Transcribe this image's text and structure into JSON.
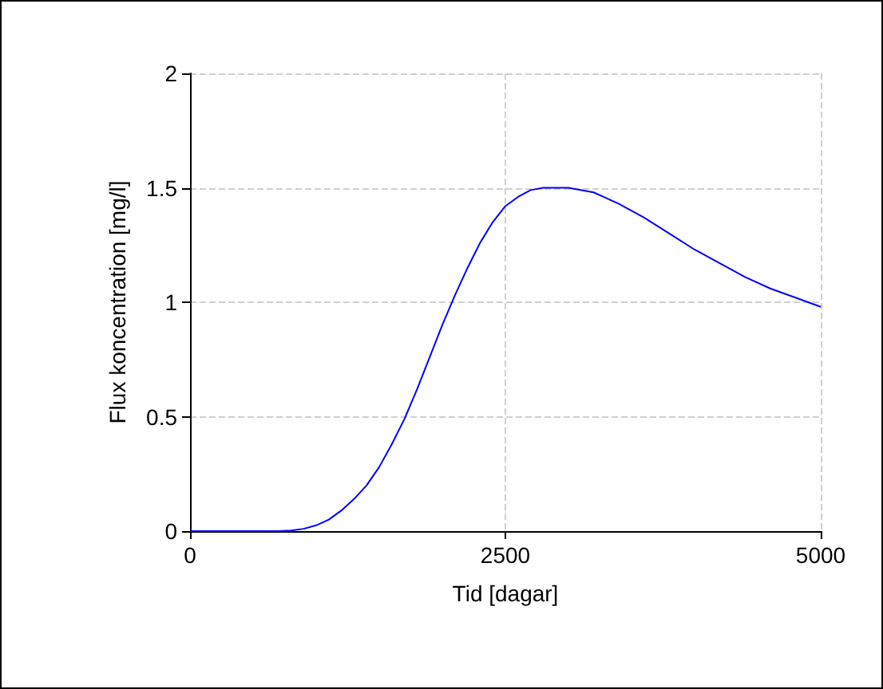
{
  "chart_data": {
    "type": "line",
    "xlabel": "Tid [dagar]",
    "ylabel": "Flux koncentration [mg/l]",
    "x": [
      0,
      500,
      700,
      800,
      900,
      1000,
      1100,
      1200,
      1300,
      1400,
      1500,
      1600,
      1700,
      1800,
      1900,
      2000,
      2100,
      2200,
      2300,
      2400,
      2500,
      2600,
      2700,
      2800,
      2900,
      3000,
      3200,
      3400,
      3600,
      3800,
      4000,
      4200,
      4400,
      4600,
      4800,
      5000
    ],
    "series": [
      {
        "color": "#0000ff",
        "values": [
          0,
          0,
          0,
          0.003,
          0.01,
          0.025,
          0.05,
          0.09,
          0.14,
          0.2,
          0.28,
          0.38,
          0.49,
          0.62,
          0.76,
          0.9,
          1.03,
          1.15,
          1.26,
          1.35,
          1.42,
          1.46,
          1.49,
          1.5,
          1.5,
          1.5,
          1.48,
          1.43,
          1.37,
          1.3,
          1.23,
          1.17,
          1.11,
          1.06,
          1.02,
          0.98
        ]
      }
    ],
    "xlim": [
      0,
      5000
    ],
    "xticks": [
      0,
      2500,
      5000
    ],
    "ylim": [
      0,
      2
    ],
    "yticks": [
      0,
      0.5,
      1,
      1.5,
      2
    ],
    "grid": true,
    "marker": "none",
    "line_style": "solid"
  }
}
